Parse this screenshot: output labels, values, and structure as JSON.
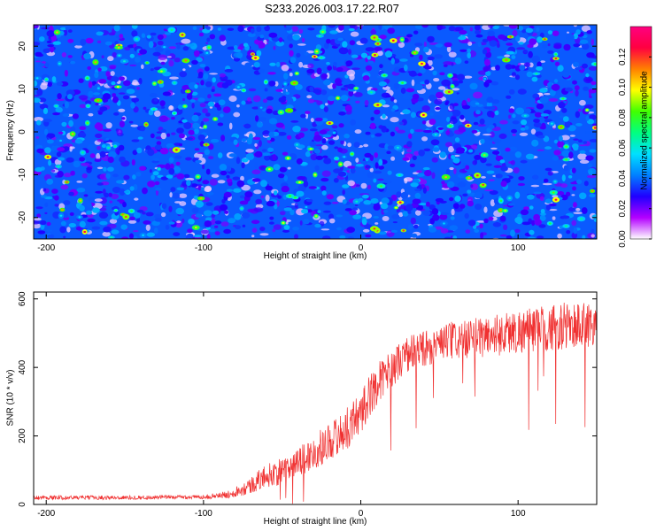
{
  "title": "S233.2026.003.17.22.R07",
  "chart_data": [
    {
      "type": "heatmap",
      "xlabel": "Height of straight line (km)",
      "ylabel": "Frequency (Hz)",
      "xlim": [
        -208,
        150
      ],
      "ylim": [
        -25,
        25
      ],
      "xticks": [
        -200,
        -100,
        0,
        100
      ],
      "yticks": [
        -20,
        -10,
        0,
        10,
        20
      ],
      "colorbar": {
        "label": "Normalized spectral amplitude",
        "range": [
          0,
          0.14
        ],
        "ticks": [
          "0.00",
          "0.02",
          "0.04",
          "0.06",
          "0.08",
          "0.10",
          "0.12"
        ],
        "colors": [
          "#ffffff",
          "#b400ff",
          "#2000ff",
          "#0080ff",
          "#00e0ff",
          "#00ff80",
          "#40ff00",
          "#ffff00",
          "#ff8000",
          "#ff0040",
          "#ff0080"
        ]
      },
      "description_values": {
        "background_amplitude_range": [
          0.02,
          0.05
        ],
        "peak_amplitude": 0.13
      }
    },
    {
      "type": "line",
      "xlabel": "Height of straight line (km)",
      "ylabel": "SNR (10 * v/v)",
      "xlim": [
        -208,
        150
      ],
      "ylim": [
        0,
        620
      ],
      "xticks": [
        -200,
        -100,
        0,
        100
      ],
      "yticks": [
        0,
        200,
        400,
        600
      ],
      "color": "#f03030",
      "trend": {
        "x": [
          -208,
          -150,
          -100,
          -85,
          -70,
          -60,
          -50,
          -40,
          -30,
          -20,
          -10,
          0,
          10,
          20,
          30,
          50,
          70,
          100,
          130,
          150
        ],
        "y": [
          20,
          20,
          22,
          28,
          55,
          85,
          95,
          120,
          150,
          185,
          215,
          270,
          350,
          400,
          440,
          470,
          485,
          505,
          520,
          530
        ]
      },
      "noise_amplitude": [
        6,
        6,
        6,
        10,
        25,
        35,
        40,
        45,
        50,
        55,
        60,
        65,
        60,
        55,
        55,
        55,
        60,
        65,
        70,
        70
      ]
    }
  ]
}
